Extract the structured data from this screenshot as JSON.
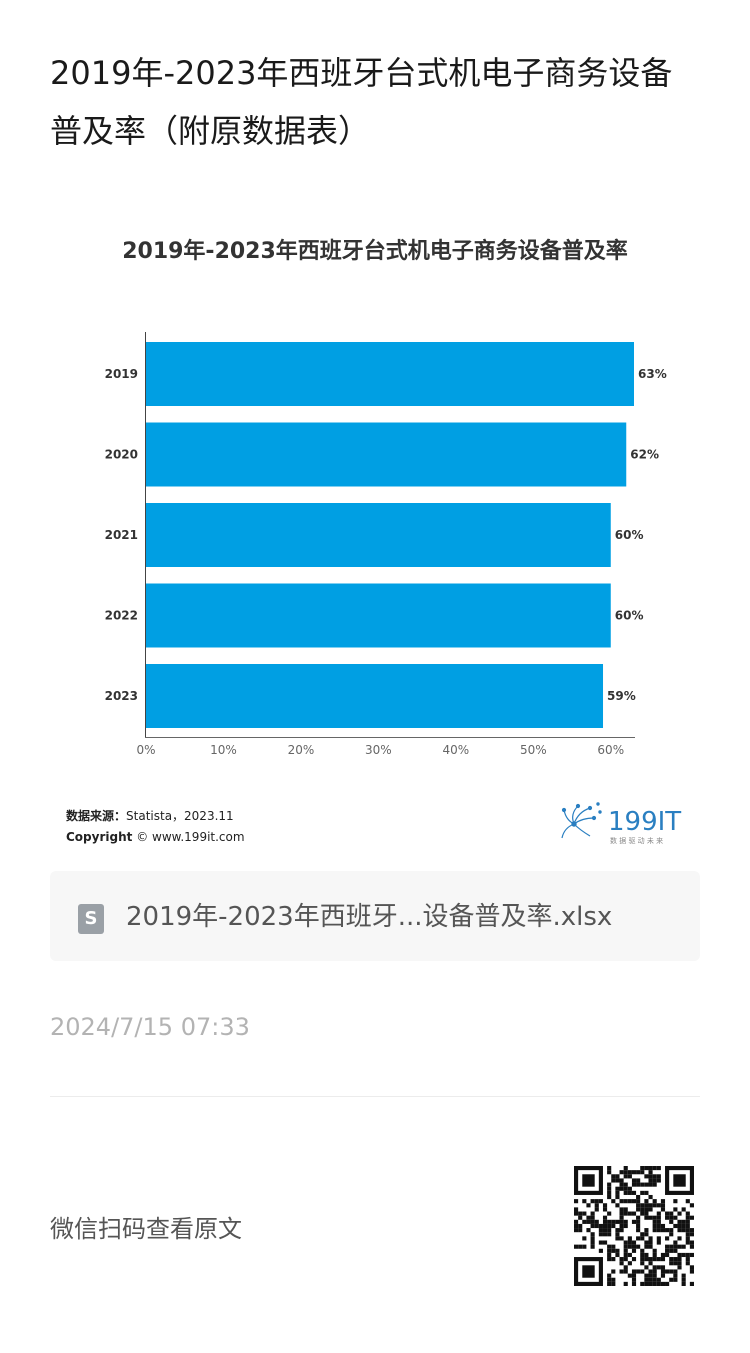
{
  "article": {
    "title": "2019年-2023年西班牙台式机电子商务设备普及率（附原数据表）"
  },
  "chart_data": {
    "type": "bar",
    "orientation": "horizontal",
    "title": "2019年-2023年西班牙台式机电子商务设备普及率",
    "categories": [
      "2019",
      "2020",
      "2021",
      "2022",
      "2023"
    ],
    "values": [
      63,
      62,
      60,
      60,
      59
    ],
    "value_suffix": "%",
    "xlim": [
      0,
      63
    ],
    "xticks": [
      "0%",
      "10%",
      "20%",
      "30%",
      "40%",
      "50%",
      "60%"
    ],
    "xlabel": "",
    "ylabel": "",
    "bar_color": "#009fe3",
    "grid": false
  },
  "source": {
    "label": "数据来源：",
    "text": "Statista，2023.11",
    "copyright_label": "Copyright",
    "copyright_text": "© www.199it.com"
  },
  "logo": {
    "text": "199IT",
    "tagline": "数 据 驱 动 未 来",
    "color": "#2a7fc1"
  },
  "attachment": {
    "icon": "spreadsheet-file-icon",
    "icon_letter": "S",
    "name": "2019年-2023年西班牙...设备普及率.xlsx"
  },
  "meta": {
    "timestamp": "2024/7/15 07:33"
  },
  "footer": {
    "wechat_label": "微信扫码查看原文",
    "qr_icon": "qr-code-icon"
  }
}
